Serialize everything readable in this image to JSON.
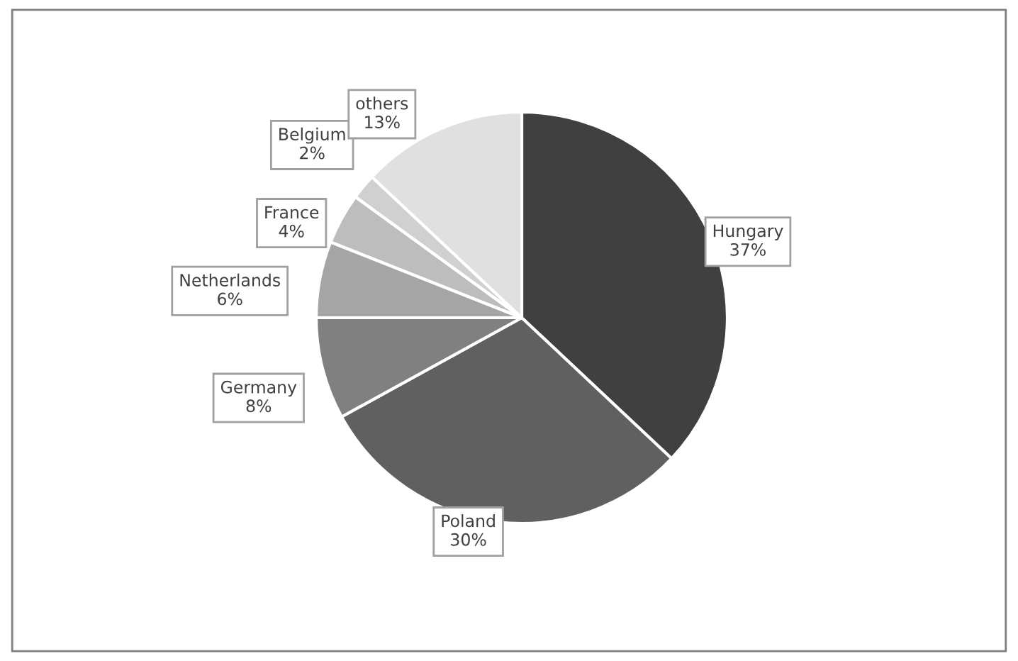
{
  "chart_data": {
    "type": "pie",
    "categories": [
      "Hungary",
      "Poland",
      "Germany",
      "Netherlands",
      "France",
      "Belgium",
      "others"
    ],
    "values": [
      37,
      30,
      8,
      6,
      4,
      2,
      13
    ],
    "colors": [
      "#404040",
      "#606060",
      "#808080",
      "#a5a5a5",
      "#bdbdbd",
      "#d0d0d0",
      "#e0e0e0"
    ],
    "value_labels": [
      "37%",
      "30%",
      "8%",
      "6%",
      "4%",
      "2%",
      "13%"
    ]
  }
}
